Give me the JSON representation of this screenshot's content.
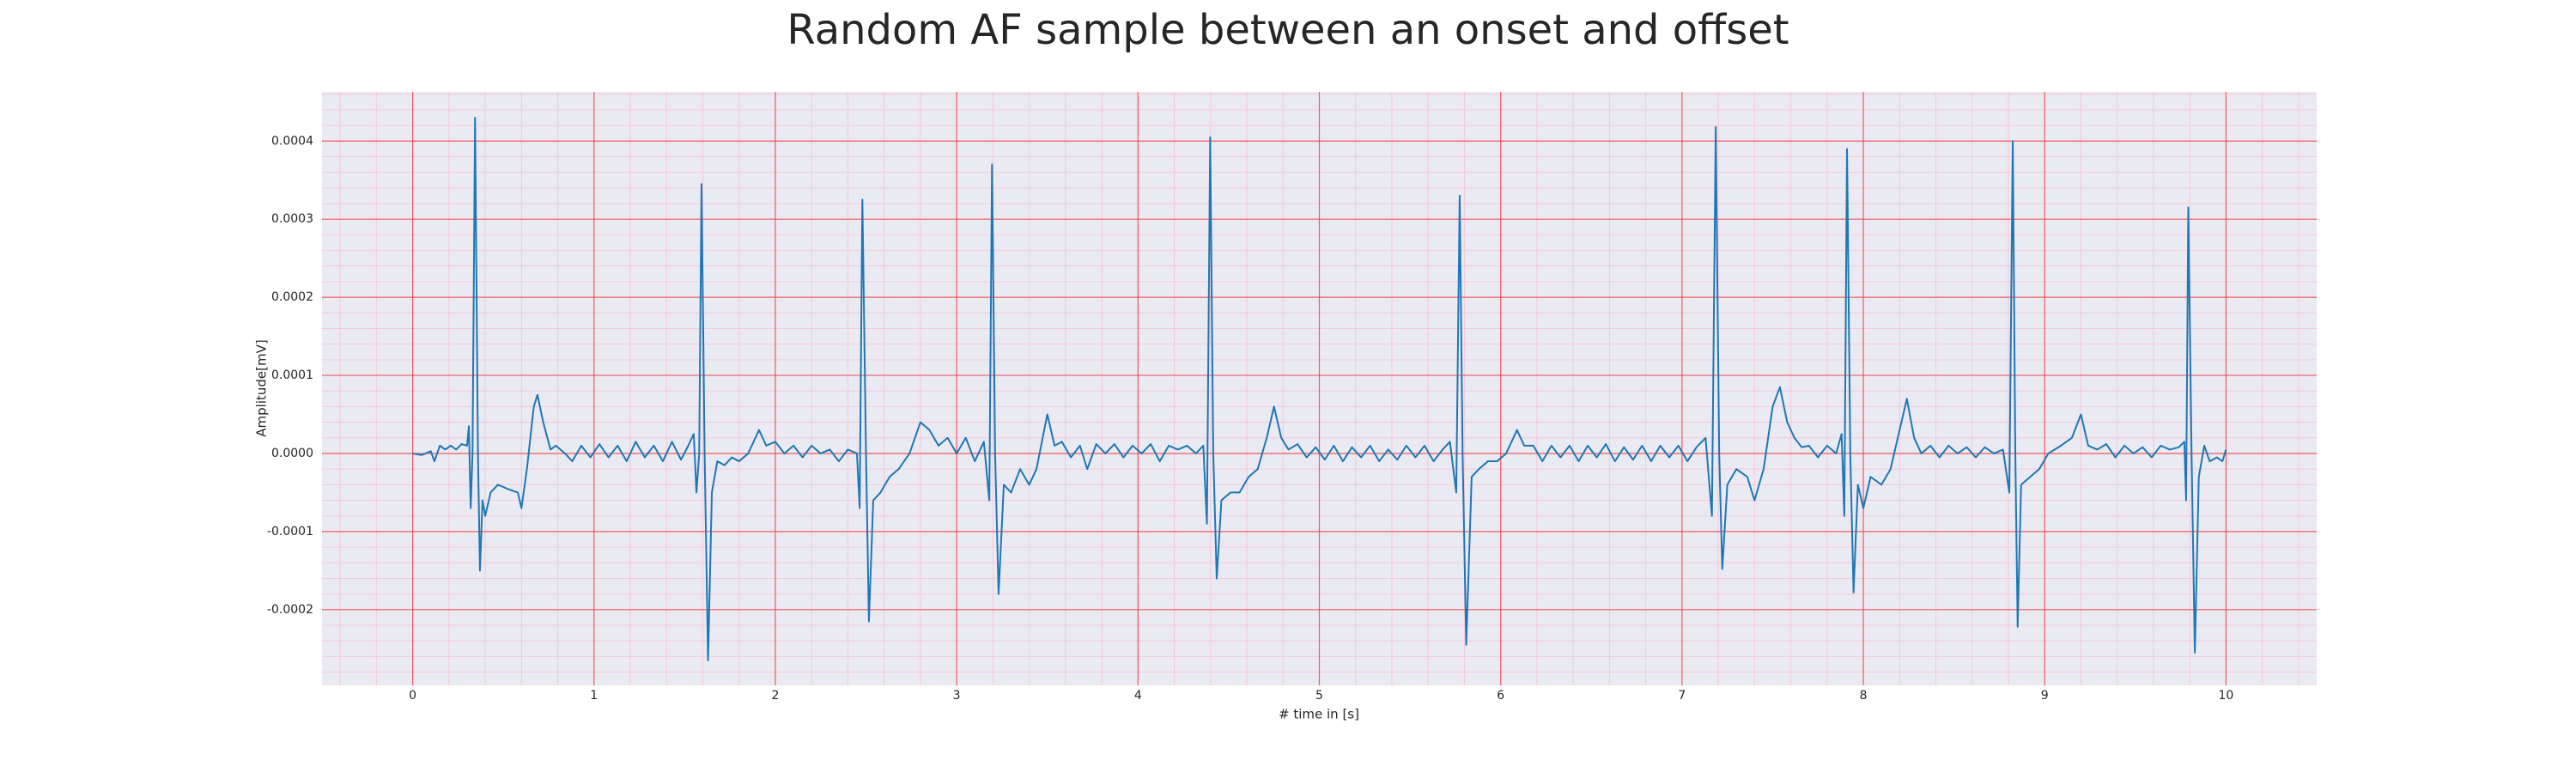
{
  "chart_data": {
    "type": "line",
    "title": "Random AF sample between an onset and offset",
    "x_label": "# time in [s]",
    "y_label": "Amplitude[mV]",
    "color": "#1f77b4",
    "grid": true,
    "minor_grid": true,
    "xlim": [
      -0.5,
      10.5
    ],
    "xticks": [
      0,
      1,
      2,
      3,
      4,
      5,
      6,
      7,
      8,
      9,
      10
    ],
    "ylim": [
      -0.000297,
      0.000463
    ],
    "yticks": [
      -0.0002,
      -0.0001,
      {
        "value": 0,
        "label": "0.0000"
      },
      0.0001,
      0.0002,
      0.0003,
      0.0004
    ],
    "x": [
      0.0,
      0.05,
      0.1,
      0.12,
      0.15,
      0.18,
      0.21,
      0.24,
      0.27,
      0.3,
      0.31,
      0.32,
      0.33,
      0.344,
      0.36,
      0.371,
      0.385,
      0.4,
      0.43,
      0.47,
      0.52,
      0.58,
      0.6,
      0.63,
      0.668,
      0.688,
      0.72,
      0.76,
      0.79,
      0.84,
      0.88,
      0.93,
      0.98,
      1.03,
      1.08,
      1.13,
      1.18,
      1.23,
      1.28,
      1.33,
      1.38,
      1.43,
      1.48,
      1.52,
      1.55,
      1.565,
      1.58,
      1.593,
      1.61,
      1.629,
      1.65,
      1.68,
      1.72,
      1.76,
      1.8,
      1.85,
      1.91,
      1.95,
      2.0,
      2.05,
      2.1,
      2.15,
      2.2,
      2.25,
      2.3,
      2.35,
      2.4,
      2.45,
      2.465,
      2.48,
      2.5,
      2.516,
      2.54,
      2.58,
      2.63,
      2.68,
      2.74,
      2.8,
      2.85,
      2.9,
      2.95,
      3.0,
      3.05,
      3.1,
      3.15,
      3.18,
      3.195,
      3.212,
      3.231,
      3.26,
      3.3,
      3.35,
      3.4,
      3.44,
      3.5,
      3.54,
      3.58,
      3.63,
      3.68,
      3.72,
      3.77,
      3.82,
      3.87,
      3.92,
      3.97,
      4.02,
      4.07,
      4.12,
      4.17,
      4.22,
      4.27,
      4.32,
      4.36,
      4.38,
      4.398,
      4.415,
      4.434,
      4.46,
      4.51,
      4.56,
      4.61,
      4.66,
      4.71,
      4.75,
      4.79,
      4.83,
      4.88,
      4.93,
      4.98,
      5.03,
      5.08,
      5.13,
      5.18,
      5.23,
      5.28,
      5.33,
      5.38,
      5.43,
      5.48,
      5.53,
      5.58,
      5.63,
      5.68,
      5.72,
      5.755,
      5.774,
      5.79,
      5.81,
      5.84,
      5.88,
      5.93,
      5.98,
      6.03,
      6.09,
      6.13,
      6.18,
      6.23,
      6.28,
      6.33,
      6.38,
      6.43,
      6.48,
      6.53,
      6.58,
      6.63,
      6.68,
      6.73,
      6.78,
      6.83,
      6.88,
      6.93,
      6.98,
      7.03,
      7.08,
      7.13,
      7.165,
      7.186,
      7.205,
      7.222,
      7.25,
      7.3,
      7.36,
      7.4,
      7.45,
      7.5,
      7.54,
      7.58,
      7.62,
      7.66,
      7.7,
      7.75,
      7.8,
      7.85,
      7.88,
      7.895,
      7.91,
      7.928,
      7.946,
      7.97,
      8.0,
      8.04,
      8.1,
      8.15,
      8.2,
      8.24,
      8.28,
      8.32,
      8.37,
      8.42,
      8.47,
      8.52,
      8.57,
      8.62,
      8.67,
      8.72,
      8.77,
      8.805,
      8.824,
      8.838,
      8.851,
      8.87,
      8.92,
      8.97,
      9.02,
      9.09,
      9.15,
      9.2,
      9.24,
      9.29,
      9.34,
      9.39,
      9.44,
      9.49,
      9.54,
      9.59,
      9.64,
      9.69,
      9.74,
      9.77,
      9.78,
      9.792,
      9.81,
      9.828,
      9.85,
      9.88,
      9.91,
      9.95,
      9.98,
      10.0
    ],
    "values": [
      0,
      -2e-06,
      3e-06,
      -1e-05,
      1e-05,
      5e-06,
      1e-05,
      5e-06,
      1.2e-05,
      1e-05,
      3.5e-05,
      -7e-05,
      0,
      0.00043,
      0,
      -0.00015,
      -6e-05,
      -8e-05,
      -5e-05,
      -4e-05,
      -4.5e-05,
      -5e-05,
      -7e-05,
      -2e-05,
      6e-05,
      7.5e-05,
      4e-05,
      5e-06,
      1e-05,
      0,
      -1e-05,
      1e-05,
      -5e-06,
      1.2e-05,
      -5e-06,
      1e-05,
      -1e-05,
      1.5e-05,
      -5e-06,
      1e-05,
      -1e-05,
      1.5e-05,
      -8e-06,
      1e-05,
      2.5e-05,
      -5e-05,
      0,
      0.000345,
      0,
      -0.000265,
      -5e-05,
      -1e-05,
      -1.5e-05,
      -5e-06,
      -1e-05,
      0,
      3e-05,
      1e-05,
      1.5e-05,
      0,
      1e-05,
      -5e-06,
      1e-05,
      0,
      5e-06,
      -1e-05,
      5e-06,
      0,
      -7e-05,
      0.000325,
      0,
      -0.000215,
      -6e-05,
      -5e-05,
      -3e-05,
      -2e-05,
      0,
      4e-05,
      3e-05,
      1e-05,
      2e-05,
      0,
      2e-05,
      -1e-05,
      1.5e-05,
      -6e-05,
      0.00037,
      0,
      -0.00018,
      -4e-05,
      -5e-05,
      -2e-05,
      -4e-05,
      -2e-05,
      5e-05,
      1e-05,
      1.5e-05,
      -5e-06,
      1e-05,
      -2e-05,
      1.2e-05,
      0,
      1.2e-05,
      -5e-06,
      1e-05,
      0,
      1.2e-05,
      -1e-05,
      1e-05,
      5e-06,
      1e-05,
      0,
      1e-05,
      -9e-05,
      0.000405,
      0,
      -0.00016,
      -6e-05,
      -5e-05,
      -5e-05,
      -3e-05,
      -2e-05,
      2e-05,
      6e-05,
      2e-05,
      5e-06,
      1.2e-05,
      -5e-06,
      8e-06,
      -8e-06,
      1e-05,
      -1e-05,
      8e-06,
      -5e-06,
      1e-05,
      -1e-05,
      5e-06,
      -8e-06,
      1e-05,
      -5e-06,
      1e-05,
      -1e-05,
      5e-06,
      1.5e-05,
      -5e-05,
      0.00033,
      0,
      -0.000245,
      -3e-05,
      -2e-05,
      -1e-05,
      -1e-05,
      0,
      3e-05,
      1e-05,
      1e-05,
      -1e-05,
      1e-05,
      -5e-06,
      1e-05,
      -1e-05,
      1e-05,
      -5e-06,
      1.2e-05,
      -1e-05,
      8e-06,
      -8e-06,
      1e-05,
      -1e-05,
      1e-05,
      -5e-06,
      1e-05,
      -1e-05,
      8e-06,
      2e-05,
      -8e-05,
      0.000418,
      0,
      -0.000148,
      -4e-05,
      -2e-05,
      -3e-05,
      -6e-05,
      -2e-05,
      6e-05,
      8.5e-05,
      4e-05,
      2e-05,
      8e-06,
      1e-05,
      -5e-06,
      1e-05,
      0,
      2.5e-05,
      -8e-05,
      0.00039,
      0,
      -0.000178,
      -4e-05,
      -7e-05,
      -3e-05,
      -4e-05,
      -2e-05,
      3e-05,
      7e-05,
      2e-05,
      0,
      1e-05,
      -5e-06,
      1e-05,
      0,
      8e-06,
      -5e-06,
      8e-06,
      0,
      5e-06,
      -5e-05,
      0.0004,
      0,
      -0.000222,
      -4e-05,
      -3e-05,
      -2e-05,
      0,
      1e-05,
      2e-05,
      5e-05,
      1e-05,
      5e-06,
      1.2e-05,
      -5e-06,
      1e-05,
      0,
      8e-06,
      -5e-06,
      1e-05,
      5e-06,
      8e-06,
      1.5e-05,
      -6e-05,
      0.000315,
      0,
      -0.000255,
      -3e-05,
      1e-05,
      -1e-05,
      -5e-06,
      -1e-05,
      5e-06
    ]
  }
}
